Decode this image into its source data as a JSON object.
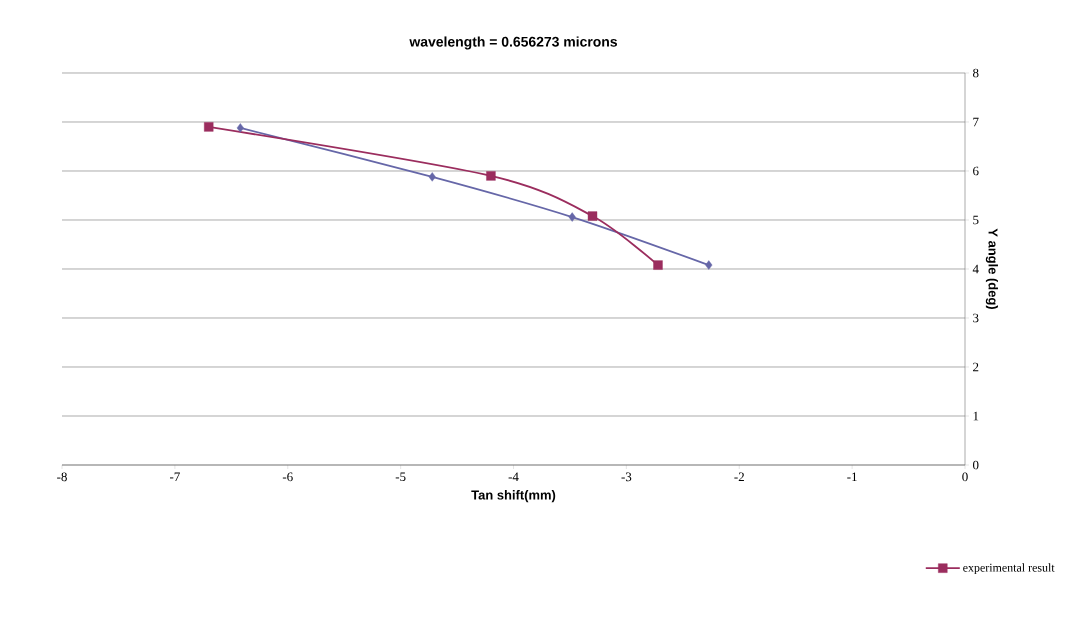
{
  "chart_data": {
    "type": "line",
    "title": "wavelength = 0.656273 microns",
    "xlabel": "Tan shift(mm)",
    "ylabel": "Y angle (deg)",
    "series": [
      {
        "color": "#6667a8",
        "marker": "diamond",
        "x": [
          -6.42,
          -4.72,
          -3.48,
          -2.27
        ],
        "values": [
          6.88,
          5.88,
          5.06,
          4.08
        ]
      },
      {
        "name": "experimental result",
        "color": "#9b2d5e",
        "marker": "square",
        "x": [
          -6.7,
          -4.2,
          -3.3,
          -2.72
        ],
        "values": [
          6.9,
          5.9,
          5.08,
          4.08
        ]
      }
    ],
    "xlim": [
      -8,
      0
    ],
    "ylim": [
      0,
      8
    ],
    "xticks": [
      -8,
      -7,
      -6,
      -5,
      -4,
      -3,
      -2,
      -1,
      0
    ],
    "yticks": [
      0,
      1,
      2,
      3,
      4,
      5,
      6,
      7,
      8
    ],
    "grid": "y",
    "legend": "bottom right",
    "line_style": "solid"
  }
}
